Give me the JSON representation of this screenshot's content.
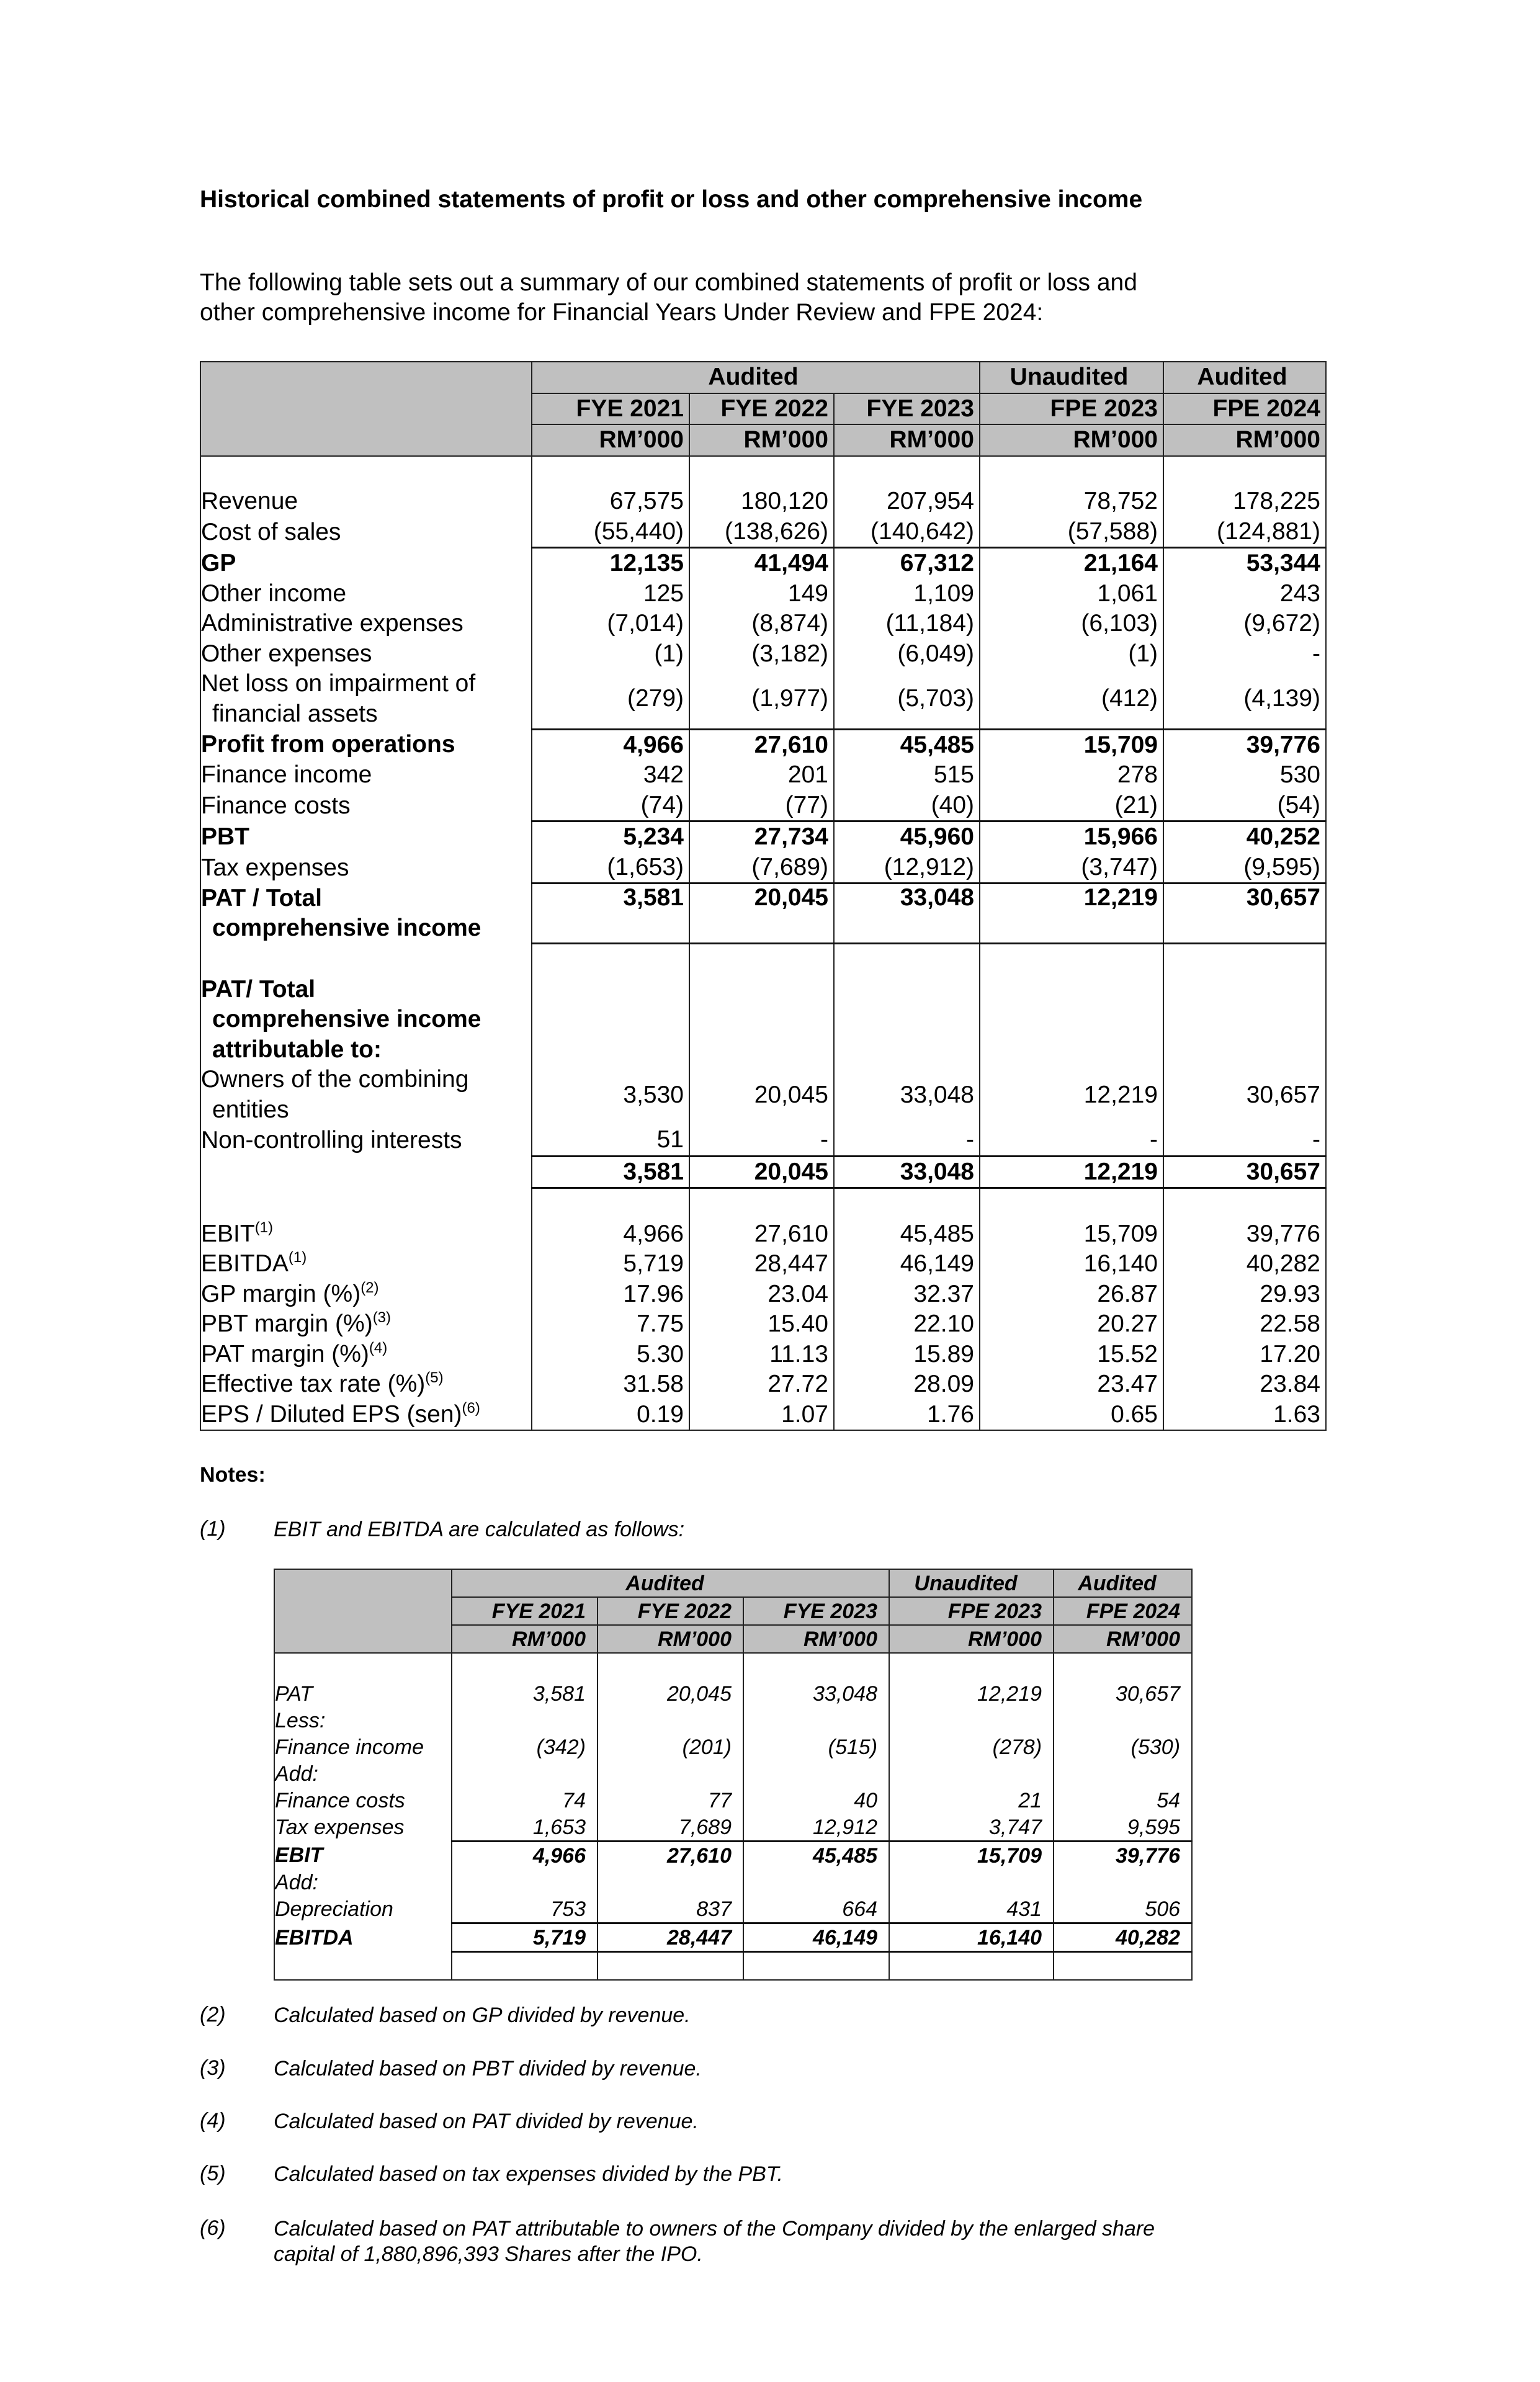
{
  "heading": "Historical combined statements of profit or loss and other comprehensive income",
  "intro": "The following table sets out a summary of our combined statements of profit or loss and other comprehensive income for Financial Years Under Review and FPE 2024:",
  "main_table": {
    "group_headers": [
      "Audited",
      "Unaudited",
      "Audited"
    ],
    "periods": [
      "FYE 2021",
      "FYE 2022",
      "FYE 2023",
      "FPE 2023",
      "FPE 2024"
    ],
    "unit": "RM’000",
    "rows": [
      {
        "label": "Revenue",
        "values": [
          "67,575",
          "180,120",
          "207,954",
          "78,752",
          "178,225"
        ]
      },
      {
        "label": "Cost of sales",
        "values": [
          "(55,440)",
          "(138,626)",
          "(140,642)",
          "(57,588)",
          "(124,881)"
        ]
      },
      {
        "label": "GP",
        "bold": true,
        "border_top": true,
        "values": [
          "12,135",
          "41,494",
          "67,312",
          "21,164",
          "53,344"
        ]
      },
      {
        "label": "Other income",
        "values": [
          "125",
          "149",
          "1,109",
          "1,061",
          "243"
        ]
      },
      {
        "label": "Administrative expenses",
        "values": [
          "(7,014)",
          "(8,874)",
          "(11,184)",
          "(6,103)",
          "(9,672)"
        ]
      },
      {
        "label": "Other expenses",
        "values": [
          "(1)",
          "(3,182)",
          "(6,049)",
          "(1)",
          "-"
        ]
      },
      {
        "label": "Net loss on impairment of",
        "label2": "financial assets",
        "values": [
          "(279)",
          "(1,977)",
          "(5,703)",
          "(412)",
          "(4,139)"
        ]
      },
      {
        "label": "Profit from operations",
        "bold": true,
        "border_top": true,
        "values": [
          "4,966",
          "27,610",
          "45,485",
          "15,709",
          "39,776"
        ]
      },
      {
        "label": "Finance income",
        "values": [
          "342",
          "201",
          "515",
          "278",
          "530"
        ]
      },
      {
        "label": "Finance costs",
        "values": [
          "(74)",
          "(77)",
          "(40)",
          "(21)",
          "(54)"
        ]
      },
      {
        "label": "PBT",
        "bold": true,
        "border_top": true,
        "values": [
          "5,234",
          "27,734",
          "45,960",
          "15,966",
          "40,252"
        ]
      },
      {
        "label": "Tax expenses",
        "values": [
          "(1,653)",
          "(7,689)",
          "(12,912)",
          "(3,747)",
          "(9,595)"
        ]
      },
      {
        "label": "PAT / Total",
        "label2": "comprehensive income",
        "bold": true,
        "border_top": true,
        "border_bottom": true,
        "top_align": true,
        "values": [
          "3,581",
          "20,045",
          "33,048",
          "12,219",
          "30,657"
        ]
      }
    ],
    "attributable": {
      "heading_lines": [
        "PAT/ Total",
        "comprehensive income",
        "attributable to:"
      ],
      "rows": [
        {
          "label": "Owners of the combining",
          "label2": "entities",
          "values": [
            "3,530",
            "20,045",
            "33,048",
            "12,219",
            "30,657"
          ]
        },
        {
          "label": "Non-controlling interests",
          "values": [
            "51",
            "-",
            "-",
            "-",
            "-"
          ]
        },
        {
          "label": "",
          "bold": true,
          "border_top": true,
          "border_bottom": true,
          "values": [
            "3,581",
            "20,045",
            "33,048",
            "12,219",
            "30,657"
          ]
        }
      ]
    },
    "metrics": [
      {
        "label": "EBIT",
        "sup": "(1)",
        "values": [
          "4,966",
          "27,610",
          "45,485",
          "15,709",
          "39,776"
        ]
      },
      {
        "label": "EBITDA",
        "sup": "(1)",
        "values": [
          "5,719",
          "28,447",
          "46,149",
          "16,140",
          "40,282"
        ]
      },
      {
        "label": "GP margin (%)",
        "sup": "(2)",
        "values": [
          "17.96",
          "23.04",
          "32.37",
          "26.87",
          "29.93"
        ]
      },
      {
        "label": "PBT margin (%)",
        "sup": "(3)",
        "values": [
          "7.75",
          "15.40",
          "22.10",
          "20.27",
          "22.58"
        ]
      },
      {
        "label": "PAT margin (%)",
        "sup": "(4)",
        "values": [
          "5.30",
          "11.13",
          "15.89",
          "15.52",
          "17.20"
        ]
      },
      {
        "label": "Effective tax rate (%)",
        "sup": "(5)",
        "values": [
          "31.58",
          "27.72",
          "28.09",
          "23.47",
          "23.84"
        ]
      },
      {
        "label": "EPS / Diluted EPS (sen)",
        "sup": "(6)",
        "values": [
          "0.19",
          "1.07",
          "1.76",
          "0.65",
          "1.63"
        ]
      }
    ]
  },
  "notes": {
    "title": "Notes:",
    "items": [
      {
        "num": "(1)",
        "text": "EBIT and EBITDA are calculated as follows:"
      },
      {
        "num": "(2)",
        "text": "Calculated based on GP divided by revenue."
      },
      {
        "num": "(3)",
        "text": "Calculated based on PBT divided by revenue."
      },
      {
        "num": "(4)",
        "text": "Calculated based on PAT divided by revenue."
      },
      {
        "num": "(5)",
        "text": "Calculated based on tax expenses divided by the PBT."
      },
      {
        "num": "(6)",
        "text": "Calculated based on PAT attributable to owners of the Company divided by the enlarged share capital of 1,880,896,393 Shares after the IPO."
      }
    ]
  },
  "ebit_table": {
    "group_headers": [
      "Audited",
      "Unaudited",
      "Audited"
    ],
    "periods": [
      "FYE 2021",
      "FYE 2022",
      "FYE 2023",
      "FPE 2023",
      "FPE 2024"
    ],
    "unit": "RM’000",
    "rows": [
      {
        "label": "PAT",
        "values": [
          "3,581",
          "20,045",
          "33,048",
          "12,219",
          "30,657"
        ]
      },
      {
        "label": "Less:",
        "values": [
          "",
          "",
          "",
          "",
          ""
        ]
      },
      {
        "label": "Finance income",
        "values": [
          "(342)",
          "(201)",
          "(515)",
          "(278)",
          "(530)"
        ]
      },
      {
        "label": "Add:",
        "values": [
          "",
          "",
          "",
          "",
          ""
        ]
      },
      {
        "label": "Finance costs",
        "values": [
          "74",
          "77",
          "40",
          "21",
          "54"
        ]
      },
      {
        "label": "Tax expenses",
        "values": [
          "1,653",
          "7,689",
          "12,912",
          "3,747",
          "9,595"
        ]
      },
      {
        "label": "EBIT",
        "bold": true,
        "border_top": true,
        "values": [
          "4,966",
          "27,610",
          "45,485",
          "15,709",
          "39,776"
        ]
      },
      {
        "label": "Add:",
        "values": [
          "",
          "",
          "",
          "",
          ""
        ]
      },
      {
        "label": "Depreciation",
        "values": [
          "753",
          "837",
          "664",
          "431",
          "506"
        ]
      },
      {
        "label": "EBITDA",
        "bold": true,
        "border_top": true,
        "border_bottom": true,
        "values": [
          "5,719",
          "28,447",
          "46,149",
          "16,140",
          "40,282"
        ]
      }
    ]
  }
}
